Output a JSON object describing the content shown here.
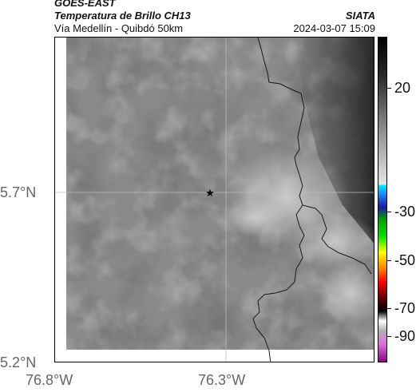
{
  "header": {
    "satellite": "GOES-EAST",
    "product": "Temperatura de Brillo CH13",
    "region": "Vía Medellín - Quibdó 50km",
    "organization": "SIATA",
    "timestamp": "2024-03-07 15:09"
  },
  "map": {
    "latitude_ticks": [
      "5.7°N",
      "5.2°N"
    ],
    "longitude_ticks": [
      "76.8°W",
      "76.3°W"
    ],
    "marker": "star",
    "gridlines": true
  },
  "colorbar": {
    "ticks": [
      "20",
      "-30",
      "-50",
      "-70",
      "-90"
    ]
  }
}
